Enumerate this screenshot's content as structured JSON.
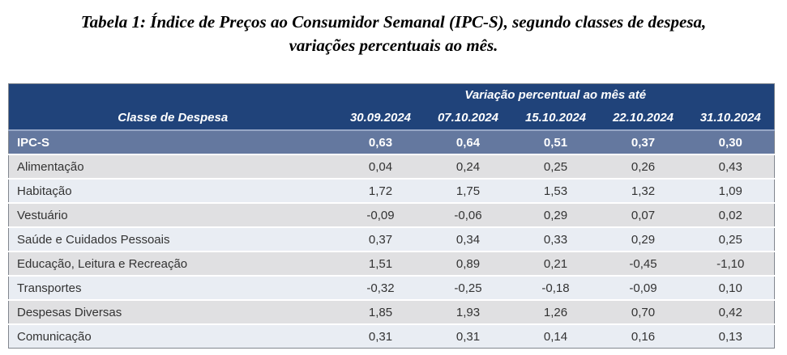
{
  "title": {
    "line1": "Tabela 1: Índice de Preços ao Consumidor Semanal (IPC-S), segundo classes de despesa,",
    "line2": "variações percentuais ao mês."
  },
  "chart_data": {
    "type": "table",
    "title": "Tabela 1: Índice de Preços ao Consumidor Semanal (IPC-S), segundo classes de despesa, variações percentuais ao mês.",
    "group_header": "Variação percentual ao mês até",
    "row_header_label": "Classe de Despesa",
    "decimal_separator": ",",
    "columns": [
      "30.09.2024",
      "07.10.2024",
      "15.10.2024",
      "22.10.2024",
      "31.10.2024"
    ],
    "summary_row": {
      "label": "IPC-S",
      "values": [
        "0,63",
        "0,64",
        "0,51",
        "0,37",
        "0,30"
      ]
    },
    "rows": [
      {
        "label": "Alimentação",
        "values": [
          "0,04",
          "0,24",
          "0,25",
          "0,26",
          "0,43"
        ]
      },
      {
        "label": "Habitação",
        "values": [
          "1,72",
          "1,75",
          "1,53",
          "1,32",
          "1,09"
        ]
      },
      {
        "label": "Vestuário",
        "values": [
          "-0,09",
          "-0,06",
          "0,29",
          "0,07",
          "0,02"
        ]
      },
      {
        "label": "Saúde e Cuidados Pessoais",
        "values": [
          "0,37",
          "0,34",
          "0,33",
          "0,29",
          "0,25"
        ]
      },
      {
        "label": "Educação, Leitura e Recreação",
        "values": [
          "1,51",
          "0,89",
          "0,21",
          "-0,45",
          "-1,10"
        ]
      },
      {
        "label": "Transportes",
        "values": [
          "-0,32",
          "-0,25",
          "-0,18",
          "-0,09",
          "0,10"
        ]
      },
      {
        "label": "Despesas Diversas",
        "values": [
          "1,85",
          "1,93",
          "1,26",
          "0,70",
          "0,42"
        ]
      },
      {
        "label": "Comunicação",
        "values": [
          "0,31",
          "0,31",
          "0,14",
          "0,16",
          "0,13"
        ]
      }
    ]
  },
  "colors": {
    "header_bg": "#20437A",
    "summary_row_bg": "#64789F",
    "row_gray_bg": "#E0E0E2",
    "row_blue_bg": "#E9EDF3",
    "header_text": "#FFFFFF",
    "body_text": "#333333"
  }
}
